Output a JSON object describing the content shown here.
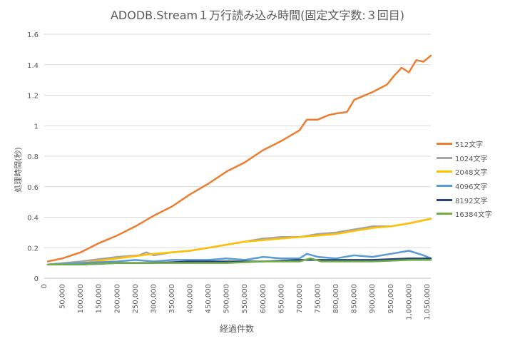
{
  "chart_data": {
    "type": "line",
    "title": "ADODB.Stream１万行読み込み時間(固定文字数:３回目)",
    "xlabel": "経過件数",
    "ylabel": "処理時間(秒)",
    "xlim": [
      0,
      1060000
    ],
    "ylim": [
      0,
      1.6
    ],
    "yticks": [
      "0",
      "0.2",
      "0.4",
      "0.6",
      "0.8",
      "1",
      "1.2",
      "1.4",
      "1.6"
    ],
    "xticks": [
      "0",
      "50,000",
      "100,000",
      "150,000",
      "200,000",
      "250,000",
      "300,000",
      "350,000",
      "400,000",
      "450,000",
      "500,000",
      "550,000",
      "600,000",
      "650,000",
      "700,000",
      "750,000",
      "800,000",
      "850,000",
      "900,000",
      "950,000",
      "1,000,000",
      "1,050,000"
    ],
    "grid": true,
    "legend_position": "right",
    "series": [
      {
        "name": "512文字",
        "color": "#ED7D31",
        "x": [
          10000,
          50000,
          100000,
          150000,
          200000,
          250000,
          300000,
          350000,
          400000,
          450000,
          500000,
          550000,
          600000,
          650000,
          700000,
          720000,
          750000,
          780000,
          800000,
          830000,
          850000,
          900000,
          940000,
          960000,
          980000,
          1000000,
          1020000,
          1040000,
          1060000
        ],
        "y": [
          0.11,
          0.13,
          0.17,
          0.23,
          0.28,
          0.34,
          0.41,
          0.47,
          0.55,
          0.62,
          0.7,
          0.76,
          0.84,
          0.9,
          0.97,
          1.04,
          1.04,
          1.07,
          1.08,
          1.09,
          1.17,
          1.22,
          1.27,
          1.33,
          1.38,
          1.35,
          1.43,
          1.42,
          1.46
        ]
      },
      {
        "name": "1024文字",
        "color": "#A5A5A5",
        "x": [
          10000,
          100000,
          200000,
          260000,
          280000,
          300000,
          350000,
          400000,
          450000,
          500000,
          550000,
          600000,
          650000,
          700000,
          750000,
          800000,
          850000,
          900000,
          950000,
          1000000,
          1060000
        ],
        "y": [
          0.09,
          0.11,
          0.14,
          0.15,
          0.17,
          0.15,
          0.17,
          0.18,
          0.2,
          0.22,
          0.24,
          0.26,
          0.27,
          0.27,
          0.29,
          0.3,
          0.32,
          0.34,
          0.34,
          0.36,
          0.39
        ]
      },
      {
        "name": "2048文字",
        "color": "#FFC000",
        "x": [
          10000,
          100000,
          200000,
          300000,
          350000,
          400000,
          450000,
          500000,
          550000,
          600000,
          650000,
          700000,
          750000,
          800000,
          850000,
          900000,
          950000,
          1000000,
          1060000
        ],
        "y": [
          0.09,
          0.1,
          0.13,
          0.16,
          0.17,
          0.18,
          0.2,
          0.22,
          0.24,
          0.25,
          0.26,
          0.27,
          0.28,
          0.29,
          0.31,
          0.33,
          0.34,
          0.36,
          0.39
        ]
      },
      {
        "name": "4096文字",
        "color": "#5B9BD5",
        "x": [
          10000,
          100000,
          200000,
          250000,
          300000,
          350000,
          400000,
          450000,
          500000,
          550000,
          600000,
          650000,
          700000,
          720000,
          750000,
          800000,
          850000,
          900000,
          950000,
          1000000,
          1040000,
          1060000
        ],
        "y": [
          0.09,
          0.1,
          0.11,
          0.12,
          0.11,
          0.12,
          0.12,
          0.12,
          0.13,
          0.12,
          0.14,
          0.13,
          0.13,
          0.16,
          0.14,
          0.13,
          0.15,
          0.14,
          0.16,
          0.18,
          0.15,
          0.13
        ]
      },
      {
        "name": "8192文字",
        "color": "#264478",
        "x": [
          10000,
          100000,
          200000,
          300000,
          400000,
          500000,
          600000,
          700000,
          800000,
          900000,
          1000000,
          1060000
        ],
        "y": [
          0.09,
          0.09,
          0.1,
          0.1,
          0.11,
          0.11,
          0.11,
          0.12,
          0.12,
          0.12,
          0.13,
          0.13
        ]
      },
      {
        "name": "16384文字",
        "color": "#70AD47",
        "x": [
          10000,
          100000,
          200000,
          300000,
          400000,
          500000,
          600000,
          700000,
          730000,
          760000,
          800000,
          900000,
          1000000,
          1060000
        ],
        "y": [
          0.09,
          0.09,
          0.1,
          0.1,
          0.1,
          0.1,
          0.11,
          0.11,
          0.13,
          0.11,
          0.11,
          0.11,
          0.12,
          0.12
        ]
      }
    ]
  }
}
